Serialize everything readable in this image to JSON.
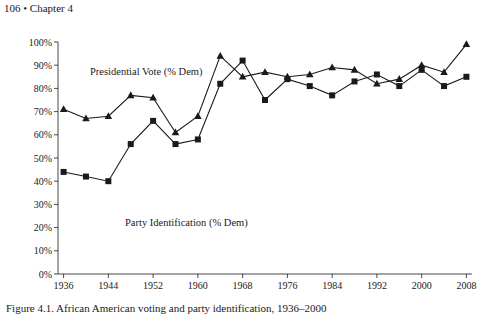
{
  "page": {
    "header": "106 • Chapter 4"
  },
  "chart_data": {
    "type": "line",
    "title": "Figure 4.1. African American voting and party identification, 1936–2000",
    "x": [
      1936,
      1940,
      1944,
      1948,
      1952,
      1956,
      1960,
      1964,
      1968,
      1972,
      1976,
      1980,
      1984,
      1988,
      1992,
      1996,
      2000,
      2004,
      2008
    ],
    "series": [
      {
        "name": "Presidential Vote (% Dem)",
        "color": "#1a1a1a",
        "marker": "triangle",
        "line_style": "solid",
        "values": [
          71,
          67,
          68,
          77,
          76,
          61,
          68,
          94,
          85,
          87,
          85,
          86,
          89,
          88,
          82,
          84,
          90,
          87,
          99
        ]
      },
      {
        "name": "Party Identification (% Dem)",
        "color": "#1a1a1a",
        "marker": "square",
        "line_style": "solid",
        "values": [
          44,
          42,
          40,
          56,
          66,
          56,
          58,
          82,
          92,
          75,
          84,
          81,
          77,
          83,
          86,
          81,
          88,
          81,
          85
        ]
      }
    ],
    "xlim": [
      1935,
      2009
    ],
    "xticks": [
      1936,
      1944,
      1952,
      1960,
      1968,
      1976,
      1984,
      1992,
      2000,
      2008
    ],
    "ylim": [
      0,
      100
    ],
    "yticks": [
      {
        "value": 0,
        "label": "0%"
      },
      {
        "value": 10,
        "label": "10%"
      },
      {
        "value": 20,
        "label": "20%"
      },
      {
        "value": 30,
        "label": "30%"
      },
      {
        "value": 40,
        "label": "40%"
      },
      {
        "value": 50,
        "label": "50%"
      },
      {
        "value": 60,
        "label": "60%"
      },
      {
        "value": 70,
        "label": "70%"
      },
      {
        "value": 80,
        "label": "80%"
      },
      {
        "value": 90,
        "label": "90%"
      },
      {
        "value": 100,
        "label": "100%"
      }
    ],
    "grid": false
  }
}
